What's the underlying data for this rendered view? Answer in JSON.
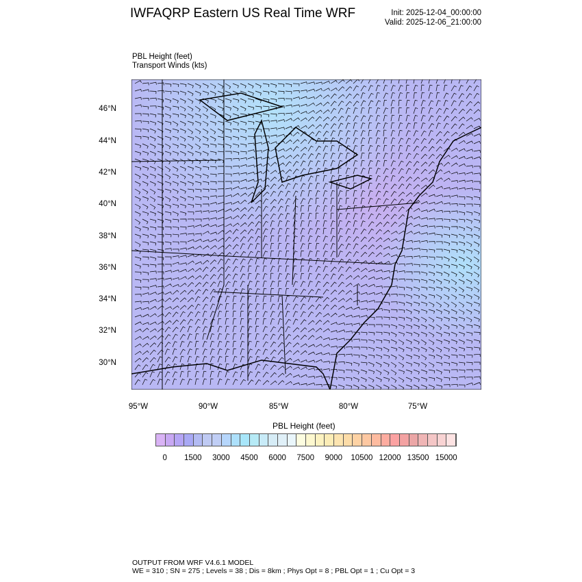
{
  "header": {
    "title": "IWFAQRP Eastern US Real Time WRF",
    "init": "Init: 2025-12-04_00:00:00",
    "valid": "Valid: 2025-12-06_21:00:00"
  },
  "fields": {
    "field1": "PBL Height   (feet)",
    "field2": "Transport Winds   (kts)"
  },
  "map": {
    "lat_labels": [
      "46°N",
      "44°N",
      "42°N",
      "40°N",
      "38°N",
      "36°N",
      "34°N",
      "32°N",
      "30°N"
    ],
    "lon_labels": [
      "95°W",
      "90°W",
      "85°W",
      "80°W",
      "75°W"
    ]
  },
  "colorbar": {
    "title": "PBL Height  (feet)",
    "labels": [
      "0",
      "1500",
      "3000",
      "4500",
      "6000",
      "7500",
      "9000",
      "10500",
      "12000",
      "13500",
      "15000"
    ],
    "colors": [
      "#d9b3f5",
      "#c8a8f3",
      "#b5a5f5",
      "#a9a9f5",
      "#b3bbf3",
      "#bfcaf3",
      "#c0cef5",
      "#b6d6fb",
      "#ade0fb",
      "#a8e6fa",
      "#b6eaf6",
      "#c8ebf8",
      "#d6ecf6",
      "#e0f0f8",
      "#eaf6fb",
      "#fdfde0",
      "#fdf8cf",
      "#fcf2c0",
      "#fbecb6",
      "#fce4b0",
      "#fcdca8",
      "#fdd2a4",
      "#fdc8a2",
      "#fdbba0",
      "#fdaca0",
      "#fba2a2",
      "#f3a2a2",
      "#eba6a6",
      "#efb5b5",
      "#f4c6c6",
      "#f8d3d3",
      "#fde3e3"
    ]
  },
  "footer": {
    "line1": "OUTPUT FROM WRF V4.6.1 MODEL",
    "line2": "WE = 310 ; SN = 275 ; Levels = 38 ; Dis = 8km ; Phys Opt = 8 ; PBL Opt = 1 ; Cu Opt = 3"
  }
}
